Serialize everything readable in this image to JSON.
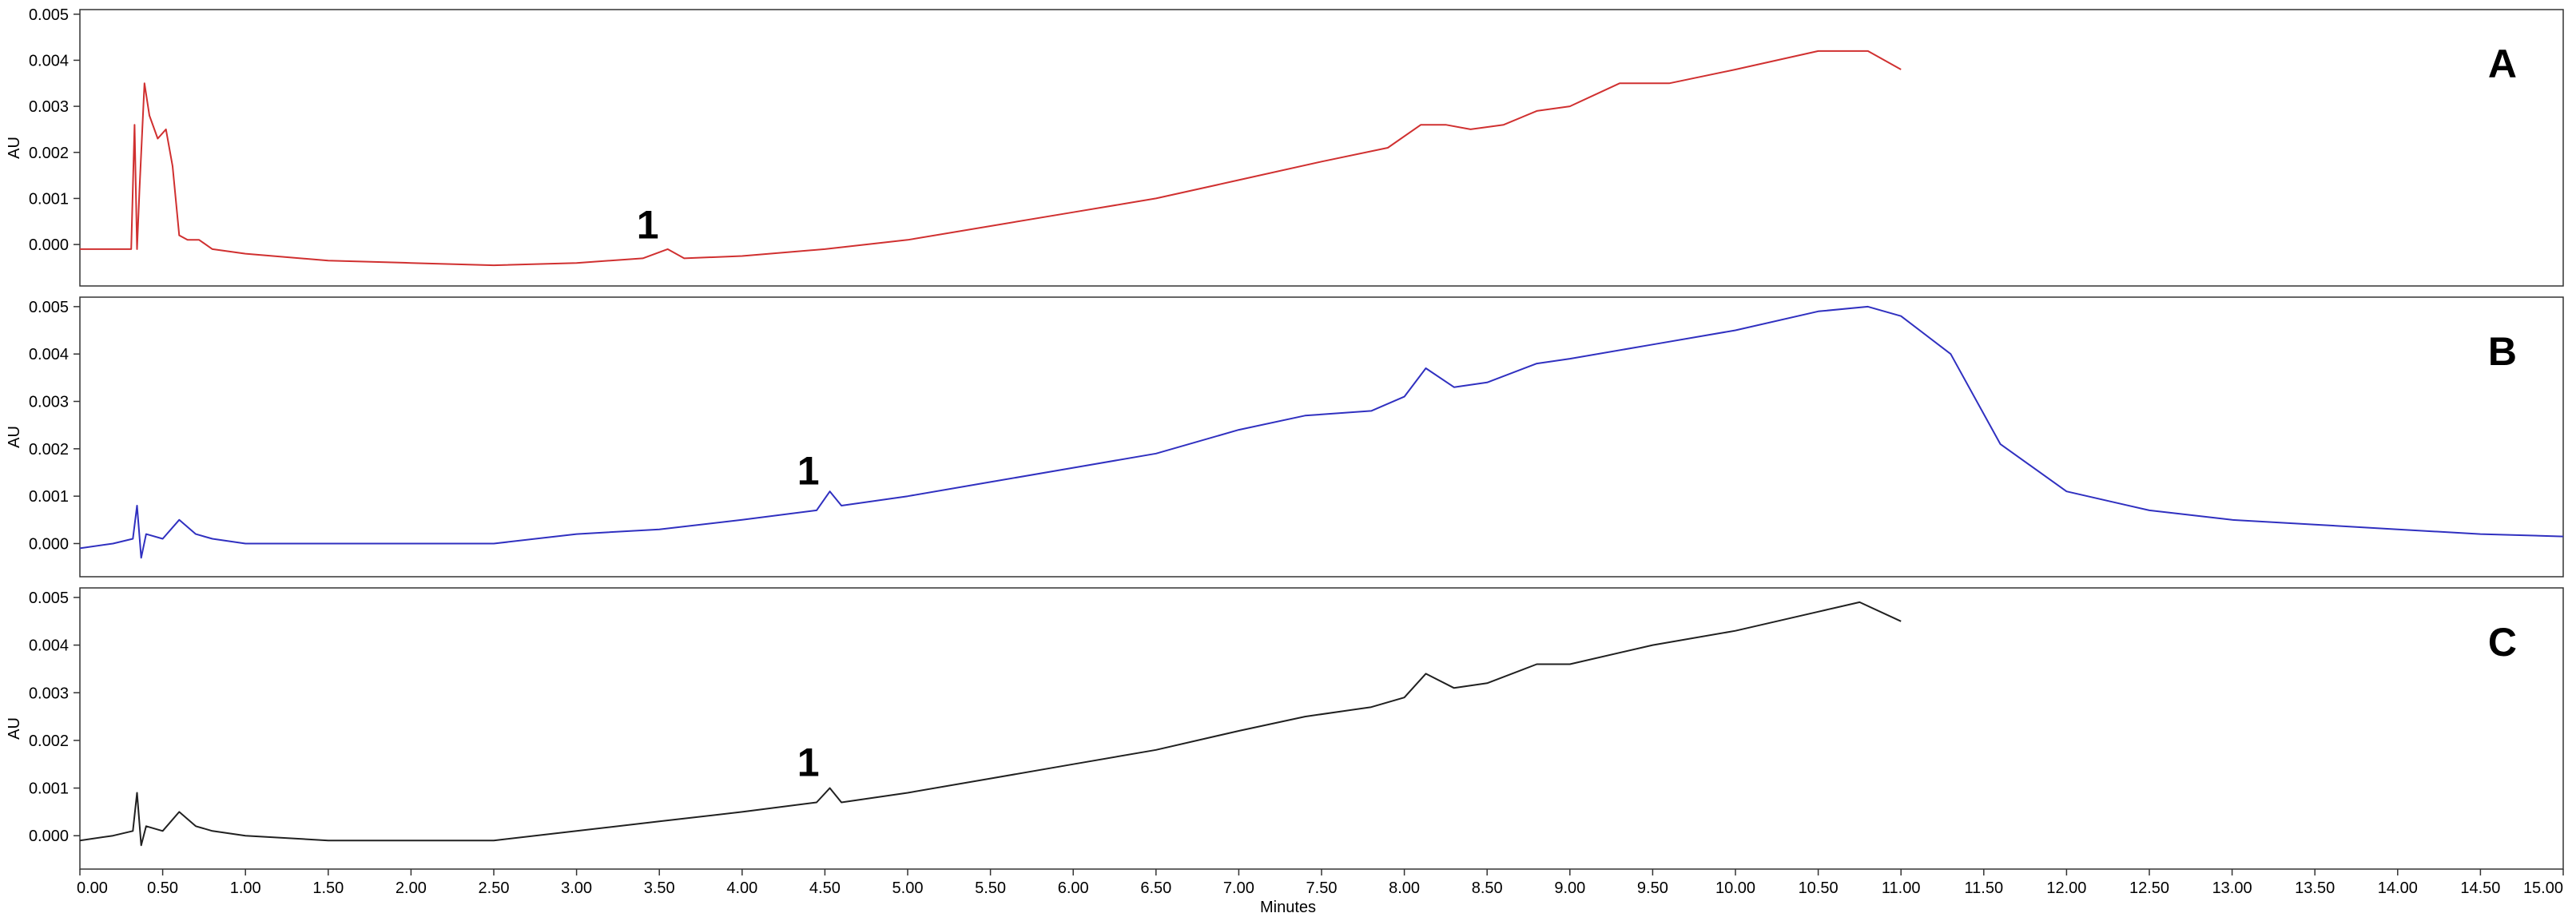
{
  "chart_data": {
    "type": "line",
    "xlabel": "Minutes",
    "xlim": [
      0,
      15
    ],
    "x_ticks": [
      "0.00",
      "0.50",
      "1.00",
      "1.50",
      "2.00",
      "2.50",
      "3.00",
      "3.50",
      "4.00",
      "4.50",
      "5.00",
      "5.50",
      "6.00",
      "6.50",
      "7.00",
      "7.50",
      "8.00",
      "8.50",
      "9.00",
      "9.50",
      "10.00",
      "10.50",
      "11.00",
      "11.50",
      "12.00",
      "12.50",
      "13.00",
      "13.50",
      "14.00",
      "14.50",
      "15.00"
    ],
    "panels": [
      {
        "label": "A",
        "ylabel": "AU",
        "ylim": [
          -0.0009,
          0.0051
        ],
        "y_ticks": [
          "0.000",
          "0.001",
          "0.002",
          "0.003",
          "0.004",
          "0.005"
        ],
        "color": "#d03030",
        "peak_annotation": {
          "text": "1",
          "x": 3.43,
          "y": 0.00013
        },
        "points": [
          [
            0,
            -0.0001
          ],
          [
            0.2,
            -0.0001
          ],
          [
            0.31,
            -0.0001
          ],
          [
            0.33,
            0.0026
          ],
          [
            0.345,
            -0.0001
          ],
          [
            0.36,
            0.0012
          ],
          [
            0.39,
            0.0035
          ],
          [
            0.42,
            0.0028
          ],
          [
            0.47,
            0.0023
          ],
          [
            0.52,
            0.0025
          ],
          [
            0.56,
            0.0017
          ],
          [
            0.6,
            0.0002
          ],
          [
            0.65,
            0.0001
          ],
          [
            0.72,
            0.0001
          ],
          [
            0.8,
            -0.0001
          ],
          [
            1.0,
            -0.0002
          ],
          [
            1.5,
            -0.00035
          ],
          [
            2.0,
            -0.0004
          ],
          [
            2.5,
            -0.00045
          ],
          [
            3.0,
            -0.0004
          ],
          [
            3.4,
            -0.0003
          ],
          [
            3.55,
            -0.0001
          ],
          [
            3.65,
            -0.0003
          ],
          [
            4.0,
            -0.00025
          ],
          [
            4.5,
            -0.0001
          ],
          [
            5.0,
            0.0001
          ],
          [
            5.5,
            0.0004
          ],
          [
            6.0,
            0.0007
          ],
          [
            6.5,
            0.001
          ],
          [
            7.0,
            0.0014
          ],
          [
            7.5,
            0.0018
          ],
          [
            7.9,
            0.0021
          ],
          [
            8.1,
            0.0026
          ],
          [
            8.25,
            0.0026
          ],
          [
            8.4,
            0.0025
          ],
          [
            8.6,
            0.0026
          ],
          [
            8.8,
            0.0029
          ],
          [
            9.0,
            0.003
          ],
          [
            9.3,
            0.0035
          ],
          [
            9.6,
            0.0035
          ],
          [
            10.0,
            0.0038
          ],
          [
            10.5,
            0.0042
          ],
          [
            10.8,
            0.0042
          ],
          [
            11.0,
            0.0038
          ]
        ]
      },
      {
        "label": "B",
        "ylabel": "AU",
        "ylim": [
          -0.0007,
          0.0052
        ],
        "y_ticks": [
          "0.000",
          "0.001",
          "0.002",
          "0.003",
          "0.004",
          "0.005"
        ],
        "color": "#3030c0",
        "peak_annotation": {
          "text": "1",
          "x": 4.4,
          "y": 0.00125
        },
        "points": [
          [
            0,
            -0.0001
          ],
          [
            0.2,
            0.0
          ],
          [
            0.32,
            0.0001
          ],
          [
            0.345,
            0.0008
          ],
          [
            0.37,
            -0.0003
          ],
          [
            0.4,
            0.0002
          ],
          [
            0.5,
            0.0001
          ],
          [
            0.6,
            0.0005
          ],
          [
            0.7,
            0.0002
          ],
          [
            0.8,
            0.0001
          ],
          [
            1.0,
            0.0
          ],
          [
            1.5,
            0.0
          ],
          [
            2.0,
            0.0
          ],
          [
            2.5,
            0.0
          ],
          [
            3.0,
            0.0002
          ],
          [
            3.5,
            0.0003
          ],
          [
            4.0,
            0.0005
          ],
          [
            4.45,
            0.0007
          ],
          [
            4.53,
            0.0011
          ],
          [
            4.6,
            0.0008
          ],
          [
            5.0,
            0.001
          ],
          [
            5.5,
            0.0013
          ],
          [
            6.0,
            0.0016
          ],
          [
            6.5,
            0.0019
          ],
          [
            7.0,
            0.0024
          ],
          [
            7.4,
            0.0027
          ],
          [
            7.8,
            0.0028
          ],
          [
            8.0,
            0.0031
          ],
          [
            8.13,
            0.0037
          ],
          [
            8.3,
            0.0033
          ],
          [
            8.5,
            0.0034
          ],
          [
            8.8,
            0.0038
          ],
          [
            9.0,
            0.0039
          ],
          [
            9.5,
            0.0042
          ],
          [
            10.0,
            0.0045
          ],
          [
            10.5,
            0.0049
          ],
          [
            10.8,
            0.005
          ],
          [
            11.0,
            0.0048
          ],
          [
            11.3,
            0.004
          ],
          [
            11.6,
            0.0021
          ],
          [
            12.0,
            0.0011
          ],
          [
            12.5,
            0.0007
          ],
          [
            13.0,
            0.0005
          ],
          [
            13.5,
            0.0004
          ],
          [
            14.0,
            0.0003
          ],
          [
            14.5,
            0.0002
          ],
          [
            15.0,
            0.00015
          ]
        ]
      },
      {
        "label": "C",
        "ylabel": "AU",
        "ylim": [
          -0.0007,
          0.0052
        ],
        "y_ticks": [
          "0.000",
          "0.001",
          "0.002",
          "0.003",
          "0.004",
          "0.005"
        ],
        "color": "#202020",
        "peak_annotation": {
          "text": "1",
          "x": 4.4,
          "y": 0.00125
        },
        "points": [
          [
            0,
            -0.0001
          ],
          [
            0.2,
            0.0
          ],
          [
            0.32,
            0.0001
          ],
          [
            0.345,
            0.0009
          ],
          [
            0.37,
            -0.0002
          ],
          [
            0.4,
            0.0002
          ],
          [
            0.5,
            0.0001
          ],
          [
            0.6,
            0.0005
          ],
          [
            0.7,
            0.0002
          ],
          [
            0.8,
            0.0001
          ],
          [
            1.0,
            0.0
          ],
          [
            1.5,
            -0.0001
          ],
          [
            2.0,
            -0.0001
          ],
          [
            2.5,
            -0.0001
          ],
          [
            3.0,
            0.0001
          ],
          [
            3.5,
            0.0003
          ],
          [
            4.0,
            0.0005
          ],
          [
            4.45,
            0.0007
          ],
          [
            4.53,
            0.001
          ],
          [
            4.6,
            0.0007
          ],
          [
            5.0,
            0.0009
          ],
          [
            5.5,
            0.0012
          ],
          [
            6.0,
            0.0015
          ],
          [
            6.5,
            0.0018
          ],
          [
            7.0,
            0.0022
          ],
          [
            7.4,
            0.0025
          ],
          [
            7.8,
            0.0027
          ],
          [
            8.0,
            0.0029
          ],
          [
            8.13,
            0.0034
          ],
          [
            8.3,
            0.0031
          ],
          [
            8.5,
            0.0032
          ],
          [
            8.8,
            0.0036
          ],
          [
            9.0,
            0.0036
          ],
          [
            9.5,
            0.004
          ],
          [
            10.0,
            0.0043
          ],
          [
            10.5,
            0.0047
          ],
          [
            10.75,
            0.0049
          ],
          [
            11.0,
            0.0045
          ]
        ]
      }
    ]
  }
}
